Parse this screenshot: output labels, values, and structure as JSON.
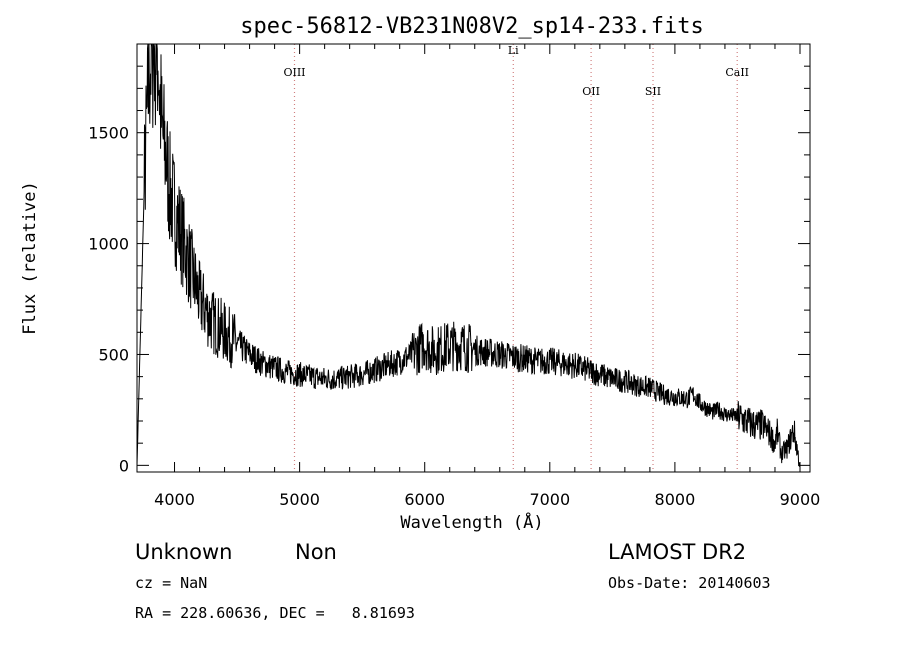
{
  "chart_data": {
    "type": "line",
    "title": "spec-56812-VB231N08V2_sp14-233.fits",
    "xlabel": "Wavelength (Å)",
    "ylabel": "Flux (relative)",
    "xlim": [
      3700,
      9080
    ],
    "ylim": [
      -30,
      1900
    ],
    "xticks": [
      4000,
      5000,
      6000,
      7000,
      8000,
      9000
    ],
    "yticks": [
      0,
      500,
      1000,
      1500
    ],
    "grid": false,
    "line_color": "#000000",
    "marker_color": "#d08080",
    "spectral_lines": [
      {
        "name": "OIII",
        "wavelength": 4959
      },
      {
        "name": "Li",
        "wavelength": 6708
      },
      {
        "name": "OII",
        "wavelength": 7330
      },
      {
        "name": "SII",
        "wavelength": 7825
      },
      {
        "name": "CaII",
        "wavelength": 8498
      }
    ],
    "series": [
      {
        "x": [
          3700,
          3760,
          3800,
          3830,
          3850,
          3870,
          3880,
          3900,
          3930,
          3960,
          4000,
          4050,
          4100,
          4150,
          4200,
          4250,
          4300,
          4400,
          4500,
          4600,
          4700,
          4800,
          4900,
          5000,
          5100,
          5200,
          5300,
          5400,
          5500,
          5600,
          5700,
          5800,
          5900,
          6000,
          6050,
          6100,
          6200,
          6300,
          6400,
          6500,
          6600,
          6700,
          6800,
          6900,
          7000,
          7100,
          7200,
          7300,
          7400,
          7500,
          7600,
          7700,
          7800,
          7900,
          8000,
          8100,
          8150,
          8200,
          8300,
          8350,
          8400,
          8500,
          8600,
          8650,
          8700,
          8750,
          8800,
          8820,
          8850,
          8900,
          8950,
          9000
        ],
        "y": [
          0,
          1300,
          1800,
          1880,
          1890,
          1850,
          1700,
          1500,
          1400,
          1250,
          1150,
          1050,
          950,
          850,
          750,
          700,
          650,
          600,
          550,
          500,
          460,
          440,
          420,
          410,
          400,
          390,
          390,
          400,
          410,
          430,
          450,
          470,
          500,
          550,
          520,
          520,
          540,
          540,
          520,
          510,
          500,
          490,
          480,
          470,
          470,
          460,
          450,
          430,
          410,
          390,
          380,
          360,
          350,
          320,
          310,
          300,
          320,
          280,
          240,
          250,
          230,
          220,
          190,
          180,
          180,
          150,
          100,
          150,
          50,
          80,
          160,
          0
        ]
      }
    ]
  },
  "footer": {
    "object_class": "Unknown",
    "object_subclass": "Non",
    "survey": "LAMOST DR2",
    "redshift": "cz = NaN",
    "obs_date": "Obs-Date: 20140603",
    "coords": "RA = 228.60636, DEC =   8.81693"
  }
}
